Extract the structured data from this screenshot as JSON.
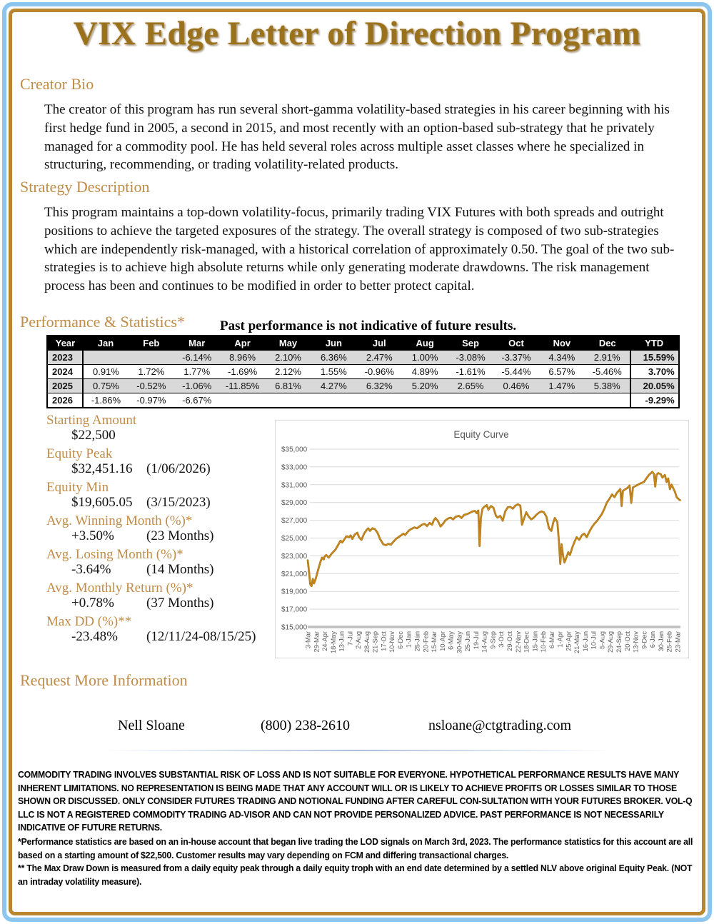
{
  "page_title": "VIX Edge Letter of Direction Program",
  "colors": {
    "frame_outer_blue": "#8cc6ee",
    "frame_inner_gold": "#b9862d",
    "heading_gold": "#c08c48",
    "title_gold": "#9b721c",
    "table_header_bg": "#000000",
    "table_row_shade": "#d9d9d9",
    "chart_line": "#c9861d",
    "chart_line_dark": "#ab7c1e",
    "chart_grid": "#d9d9d9",
    "chart_axis_text": "#595959"
  },
  "sections": {
    "creator_bio": {
      "heading": "Creator Bio",
      "body": "The creator of this program has run several short-gamma volatility-based strategies in his career beginning with his first hedge fund in 2005, a second in 2015, and most recently with an option-based sub-strategy that he privately managed for a commodity pool.  He has held several roles across multiple asset classes where he specialized in structuring, recommending, or trading volatility-related products."
    },
    "strategy": {
      "heading": "Strategy Description",
      "body": "This program maintains a top-down volatility-focus, primarily trading VIX Futures with both spreads and outright positions to achieve the targeted exposures of the strategy.  The overall strategy is composed of two sub-strategies which are independently risk-managed, with a historical correlation of approximately 0.50.  The goal of the two sub-strategies is to achieve high absolute returns while only generating moderate drawdowns. The risk management process has been and continues to be modified in order to better protect capital."
    },
    "performance": {
      "heading": "Performance & Statistics*",
      "note": "Past performance is not indicative of future results."
    },
    "request": {
      "heading": "Request More Information"
    }
  },
  "perf_table": {
    "headers": [
      "Year",
      "Jan",
      "Feb",
      "Mar",
      "Apr",
      "May",
      "Jun",
      "Jul",
      "Aug",
      "Sep",
      "Oct",
      "Nov",
      "Dec",
      "YTD"
    ],
    "rows": [
      {
        "year": "2023",
        "shaded": true,
        "months": [
          "",
          "",
          "-6.14%",
          "8.96%",
          "2.10%",
          "6.36%",
          "2.47%",
          "1.00%",
          "-3.08%",
          "-3.37%",
          "4.34%",
          "2.91%"
        ],
        "ytd": "15.59%"
      },
      {
        "year": "2024",
        "shaded": false,
        "months": [
          "0.91%",
          "1.72%",
          "1.77%",
          "-1.69%",
          "2.12%",
          "1.55%",
          "-0.96%",
          "4.89%",
          "-1.61%",
          "-5.44%",
          "6.57%",
          "-5.46%"
        ],
        "ytd": "3.70%"
      },
      {
        "year": "2025",
        "shaded": true,
        "months": [
          "0.75%",
          "-0.52%",
          "-1.06%",
          "-11.85%",
          "6.81%",
          "4.27%",
          "6.32%",
          "5.20%",
          "2.65%",
          "0.46%",
          "1.47%",
          "5.38%"
        ],
        "ytd": "20.05%"
      },
      {
        "year": "2026",
        "shaded": false,
        "months": [
          "-1.86%",
          "-0.97%",
          "-6.67%",
          "",
          "",
          "",
          "",
          "",
          "",
          "",
          "",
          ""
        ],
        "ytd": "-9.29%"
      }
    ]
  },
  "stats": [
    {
      "label": "Starting Amount",
      "value": "$22,500",
      "note": ""
    },
    {
      "label": "Equity Peak",
      "value": "$32,451.16",
      "note": "(1/06/2026)"
    },
    {
      "label": "Equity Min",
      "value": "$19,605.05",
      "note": "(3/15/2023)"
    },
    {
      "label": "Avg. Winning Month (%)*",
      "value": "+3.50%",
      "note": "(23 Months)"
    },
    {
      "label": "Avg. Losing Month (%)*",
      "value": "-3.64%",
      "note": "(14 Months)"
    },
    {
      "label": "Avg. Monthly Return (%)*",
      "value": "+0.78%",
      "note": "(37 Months)"
    },
    {
      "label": "Max DD (%)**",
      "value": "-23.48%",
      "note": "(12/11/24-08/15/25)"
    }
  ],
  "chart_data": {
    "type": "line",
    "title": "Equity Curve",
    "xlabel": "",
    "ylabel": "",
    "ylim": [
      15000,
      35000
    ],
    "ytick_step": 2000,
    "grid": true,
    "legend": false,
    "ytick_labels": [
      "$35,000",
      "$33,000",
      "$31,000",
      "$29,000",
      "$27,000",
      "$25,000",
      "$23,000",
      "$21,000",
      "$19,000",
      "$17,000",
      "$15,000"
    ],
    "x_tick_labels": [
      "3-Mar",
      "29-Mar",
      "24-Apr",
      "18-May",
      "13-Jun",
      "7-Jul",
      "2-Aug",
      "28-Aug",
      "21-Sep",
      "17-Oct",
      "10-Nov",
      "6-Dec",
      "1-Jan",
      "25-Jan",
      "20-Feb",
      "15-Mar",
      "10-Apr",
      "6-May",
      "30-May",
      "25-Jun",
      "19-Jul",
      "14-Aug",
      "9-Sep",
      "3-Oct",
      "29-Oct",
      "22-Nov",
      "18-Dec",
      "15-Jan",
      "10-Feb",
      "6-Mar",
      "1-Apr",
      "25-Apr",
      "21-May",
      "16-Jun",
      "10-Jul",
      "5-Aug",
      "29-Aug",
      "24-Sep",
      "20-Oct",
      "13-Nov",
      "9-Dec",
      "6-Jan",
      "30-Jan",
      "25-Feb",
      "23-Mar"
    ],
    "series": [
      {
        "name": "Equity",
        "points": [
          [
            0,
            22500
          ],
          [
            0.15,
            21200
          ],
          [
            0.3,
            19800
          ],
          [
            0.45,
            19605
          ],
          [
            0.6,
            20400
          ],
          [
            0.75,
            19900
          ],
          [
            0.9,
            20300
          ],
          [
            1.0,
            20600
          ],
          [
            1.2,
            21300
          ],
          [
            1.5,
            22300
          ],
          [
            1.7,
            22800
          ],
          [
            1.9,
            22600
          ],
          [
            2.0,
            22900
          ],
          [
            2.2,
            23100
          ],
          [
            2.5,
            22800
          ],
          [
            2.8,
            23200
          ],
          [
            3.0,
            23400
          ],
          [
            3.3,
            23700
          ],
          [
            3.6,
            24200
          ],
          [
            3.9,
            24700
          ],
          [
            4.1,
            24500
          ],
          [
            4.4,
            24900
          ],
          [
            4.6,
            25200
          ],
          [
            4.9,
            25100
          ],
          [
            5.1,
            25300
          ],
          [
            5.3,
            24900
          ],
          [
            5.6,
            25400
          ],
          [
            5.9,
            25600
          ],
          [
            6.1,
            25100
          ],
          [
            6.4,
            24800
          ],
          [
            6.7,
            25500
          ],
          [
            7.0,
            25900
          ],
          [
            7.2,
            26100
          ],
          [
            7.4,
            25800
          ],
          [
            7.7,
            26100
          ],
          [
            8.0,
            26000
          ],
          [
            8.3,
            25600
          ],
          [
            8.6,
            24900
          ],
          [
            9.0,
            24300
          ],
          [
            9.3,
            24200
          ],
          [
            9.6,
            24350
          ],
          [
            9.9,
            24250
          ],
          [
            10.2,
            24600
          ],
          [
            10.5,
            24900
          ],
          [
            10.8,
            25100
          ],
          [
            11.1,
            25300
          ],
          [
            11.4,
            25500
          ],
          [
            11.6,
            25350
          ],
          [
            11.9,
            25700
          ],
          [
            12.1,
            25900
          ],
          [
            12.4,
            26050
          ],
          [
            12.7,
            26200
          ],
          [
            13.0,
            26100
          ],
          [
            13.3,
            26300
          ],
          [
            13.6,
            26500
          ],
          [
            13.9,
            26600
          ],
          [
            14.2,
            26350
          ],
          [
            14.5,
            26700
          ],
          [
            14.8,
            26500
          ],
          [
            15.0,
            27000
          ],
          [
            15.2,
            27250
          ],
          [
            15.5,
            26900
          ],
          [
            15.8,
            26300
          ],
          [
            16.1,
            26600
          ],
          [
            16.4,
            27000
          ],
          [
            16.7,
            27200
          ],
          [
            17.0,
            27300
          ],
          [
            17.3,
            27100
          ],
          [
            17.6,
            27400
          ],
          [
            18.0,
            27500
          ],
          [
            18.3,
            27250
          ],
          [
            18.6,
            27600
          ],
          [
            19.0,
            27700
          ],
          [
            19.3,
            27850
          ],
          [
            19.6,
            28000
          ],
          [
            19.9,
            28050
          ],
          [
            20.1,
            27800
          ],
          [
            20.3,
            28100
          ],
          [
            20.45,
            24100
          ],
          [
            20.6,
            27300
          ],
          [
            20.8,
            28300
          ],
          [
            21.0,
            28500
          ],
          [
            21.3,
            28700
          ],
          [
            21.5,
            28200
          ],
          [
            21.8,
            28600
          ],
          [
            22.1,
            28400
          ],
          [
            22.4,
            27500
          ],
          [
            22.6,
            27300
          ],
          [
            22.9,
            27500
          ],
          [
            23.2,
            26950
          ],
          [
            23.5,
            28000
          ],
          [
            23.8,
            28450
          ],
          [
            24.1,
            28500
          ],
          [
            24.4,
            28300
          ],
          [
            24.7,
            28650
          ],
          [
            25.0,
            28800
          ],
          [
            25.3,
            28650
          ],
          [
            25.5,
            26500
          ],
          [
            25.7,
            27100
          ],
          [
            26.0,
            27900
          ],
          [
            26.3,
            27400
          ],
          [
            26.6,
            27100
          ],
          [
            26.9,
            27300
          ],
          [
            27.2,
            27600
          ],
          [
            27.5,
            27850
          ],
          [
            27.8,
            28000
          ],
          [
            28.1,
            27900
          ],
          [
            28.4,
            27400
          ],
          [
            28.7,
            26100
          ],
          [
            29.0,
            25800
          ],
          [
            29.2,
            26700
          ],
          [
            29.4,
            27250
          ],
          [
            29.7,
            26800
          ],
          [
            29.9,
            24500
          ],
          [
            30.05,
            22100
          ],
          [
            30.2,
            24300
          ],
          [
            30.4,
            22900
          ],
          [
            30.55,
            22250
          ],
          [
            30.7,
            22600
          ],
          [
            31.0,
            23400
          ],
          [
            31.2,
            23100
          ],
          [
            31.5,
            24000
          ],
          [
            31.8,
            24700
          ],
          [
            32.0,
            25100
          ],
          [
            32.3,
            24800
          ],
          [
            32.6,
            25300
          ],
          [
            32.9,
            25500
          ],
          [
            33.2,
            25100
          ],
          [
            33.5,
            25700
          ],
          [
            33.8,
            26200
          ],
          [
            34.1,
            26600
          ],
          [
            34.4,
            26900
          ],
          [
            34.7,
            27300
          ],
          [
            35.0,
            27700
          ],
          [
            35.3,
            28300
          ],
          [
            35.6,
            29000
          ],
          [
            35.9,
            29400
          ],
          [
            36.2,
            29900
          ],
          [
            36.5,
            29600
          ],
          [
            36.8,
            30100
          ],
          [
            37.0,
            30300
          ],
          [
            37.2,
            30500
          ],
          [
            37.35,
            28600
          ],
          [
            37.5,
            30300
          ],
          [
            37.8,
            30500
          ],
          [
            38.0,
            30600
          ],
          [
            38.3,
            30900
          ],
          [
            38.5,
            28950
          ],
          [
            38.7,
            30700
          ],
          [
            39.0,
            30850
          ],
          [
            39.3,
            31000
          ],
          [
            39.6,
            31150
          ],
          [
            40.0,
            31300
          ],
          [
            40.3,
            31700
          ],
          [
            40.6,
            32100
          ],
          [
            40.9,
            32350
          ],
          [
            41.0,
            32451
          ],
          [
            41.2,
            32200
          ],
          [
            41.35,
            30800
          ],
          [
            41.5,
            32100
          ],
          [
            41.7,
            32300
          ],
          [
            42.0,
            32200
          ],
          [
            42.2,
            31800
          ],
          [
            42.5,
            32100
          ],
          [
            42.7,
            31300
          ],
          [
            42.9,
            31700
          ],
          [
            43.1,
            30500
          ],
          [
            43.3,
            31000
          ],
          [
            43.5,
            30600
          ],
          [
            43.7,
            30200
          ],
          [
            43.9,
            29600
          ],
          [
            44.1,
            29400
          ],
          [
            44.3,
            29250
          ]
        ]
      }
    ]
  },
  "contact": {
    "name": "Nell Sloane",
    "phone": "(800) 238-2610",
    "email": "nsloane@ctgtrading.com"
  },
  "disclaimer": "COMMODITY TRADING INVOLVES SUBSTANTIAL RISK OF LOSS AND IS NOT SUITABLE FOR EVERYONE. HYPOTHETICAL PERFORMANCE RESULTS HAVE MANY INHERENT LIMITATIONS. NO REPRESENTATION IS BEING MADE THAT ANY ACCOUNT WILL OR IS LIKELY TO ACHIEVE PROFITS OR LOSSES SIMILAR TO THOSE SHOWN OR DISCUSSED. ONLY CONSIDER FUTURES TRADING AND NOTIONAL FUNDING AFTER CAREFUL CON-SULTATION WITH YOUR FUTURES BROKER. VOL-Q LLC IS NOT A REGISTERED COMMODITY TRADING AD-VISOR AND CAN NOT PROVIDE PERSONALIZED ADVICE. PAST PERFORMANCE IS NOT NECESSARILY INDICATIVE OF FUTURE RETURNS.",
  "footnotes": [
    "*Performance statistics are based on an in-house account that began live trading the LOD signals on March 3rd, 2023.  The performance statistics for this account are all based on a starting amount of $22,500. Customer results may vary depending on FCM and differing transactional charges.",
    "** The Max Draw Down is measured from a daily equity peak through a daily equity troph with an end date determined by a settled NLV above original Equity Peak. (NOT an intraday volatility measure)."
  ]
}
